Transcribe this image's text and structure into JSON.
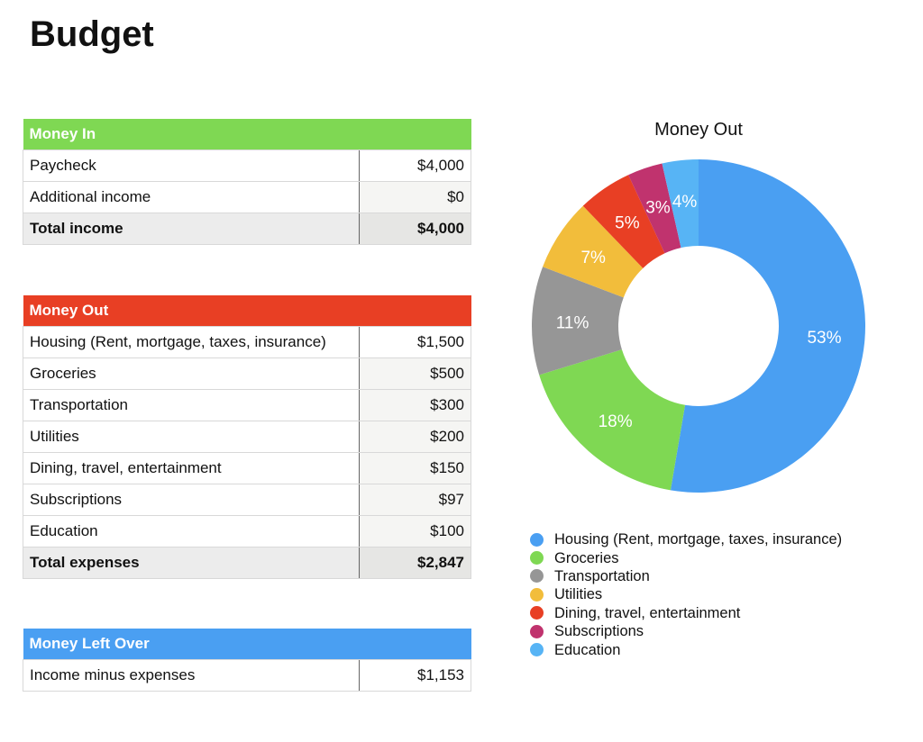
{
  "page": {
    "title": "Budget"
  },
  "money_in": {
    "header": "Money In",
    "rows": [
      {
        "label": "Paycheck",
        "value": "$4,000"
      },
      {
        "label": "Additional income",
        "value": "$0"
      }
    ],
    "total": {
      "label": "Total income",
      "value": "$4,000"
    }
  },
  "money_out": {
    "header": "Money Out",
    "rows": [
      {
        "label": "Housing (Rent, mortgage, taxes, insurance)",
        "value": "$1,500"
      },
      {
        "label": "Groceries",
        "value": "$500"
      },
      {
        "label": "Transportation",
        "value": "$300"
      },
      {
        "label": "Utilities",
        "value": "$200"
      },
      {
        "label": "Dining, travel, entertainment",
        "value": "$150"
      },
      {
        "label": "Subscriptions",
        "value": "$97"
      },
      {
        "label": "Education",
        "value": "$100"
      }
    ],
    "total": {
      "label": "Total expenses",
      "value": "$2,847"
    }
  },
  "money_left": {
    "header": "Money Left Over",
    "rows": [
      {
        "label": "Income minus expenses",
        "value": "$1,153"
      }
    ]
  },
  "colors": {
    "money_in": "#7fd853",
    "money_out": "#e83f24",
    "money_left": "#4a9ff2"
  },
  "chart_data": {
    "type": "pie",
    "title": "Money Out",
    "donut": true,
    "legend_position": "bottom",
    "categories": [
      "Housing (Rent, mortgage, taxes, insurance)",
      "Groceries",
      "Transportation",
      "Utilities",
      "Dining, travel, entertainment",
      "Subscriptions",
      "Education"
    ],
    "values": [
      1500,
      500,
      300,
      200,
      150,
      97,
      100
    ],
    "labels": [
      "53%",
      "18%",
      "11%",
      "7%",
      "5%",
      "3%",
      "4%"
    ],
    "colors": [
      "#4a9ff2",
      "#7fd853",
      "#969696",
      "#f2bd3b",
      "#e83f24",
      "#c0336e",
      "#57b4f5"
    ]
  }
}
